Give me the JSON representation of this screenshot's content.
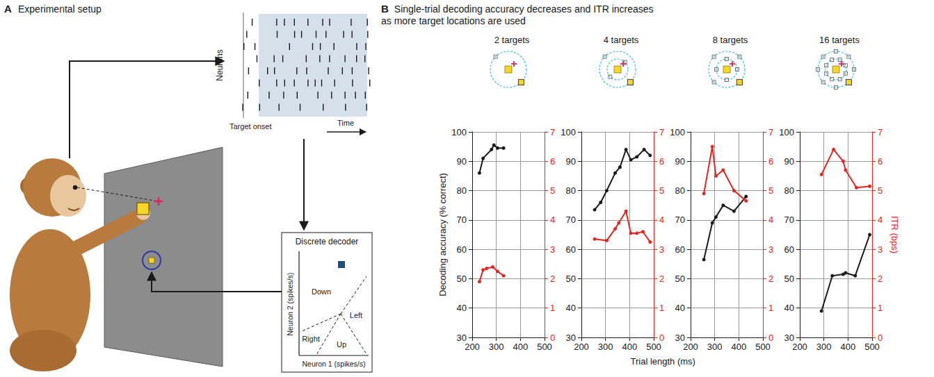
{
  "panel_a": {
    "letter": "A",
    "title": "Experimental setup",
    "raster": {
      "axis_label": "Neurons",
      "event_label": "Target onset",
      "time_label": "Time"
    },
    "decoder": {
      "title": "Discrete decoder",
      "x_label": "Neuron 1 (spikes/s)",
      "y_label": "Neuron 2 (spikes/s)",
      "regions": [
        "Down",
        "Right",
        "Left",
        "Up"
      ]
    }
  },
  "panel_b": {
    "letter": "B",
    "title": "Single-trial decoding accuracy decreases and ITR increases as more target locations are used",
    "x_label": "Trial length (ms)",
    "y_label": "Decoding accuracy (% correct)",
    "y2_label": "ITR (bps)"
  },
  "chart_data": [
    {
      "type": "line",
      "title": "2 targets",
      "grid": true,
      "marker": "circle",
      "xlim": [
        200,
        500
      ],
      "xticks": [
        200,
        300,
        400,
        500
      ],
      "ylim": [
        30,
        100
      ],
      "yticks": [
        30,
        40,
        50,
        60,
        70,
        80,
        90,
        100
      ],
      "y2lim": [
        0,
        7
      ],
      "y2ticks": [
        0,
        1,
        2,
        3,
        4,
        5,
        6,
        7
      ],
      "series": [
        {
          "color": "#1a1a1a",
          "x": [
            230,
            245,
            280,
            290,
            305,
            330
          ],
          "values": [
            86,
            91,
            94,
            95.5,
            94.5,
            94.5
          ]
        },
        {
          "color": "#e8251f",
          "axis": "y2",
          "x": [
            230,
            245,
            260,
            285,
            305,
            330
          ],
          "values": [
            1.9,
            2.3,
            2.35,
            2.4,
            2.25,
            2.1
          ]
        }
      ]
    },
    {
      "type": "line",
      "title": "4 targets",
      "grid": true,
      "marker": "circle",
      "xlim": [
        200,
        500
      ],
      "xticks": [
        200,
        300,
        400,
        500
      ],
      "ylim": [
        30,
        100
      ],
      "yticks": [
        30,
        40,
        50,
        60,
        70,
        80,
        90,
        100
      ],
      "y2lim": [
        0,
        7
      ],
      "y2ticks": [
        0,
        1,
        2,
        3,
        4,
        5,
        6,
        7
      ],
      "series": [
        {
          "color": "#1a1a1a",
          "x": [
            255,
            280,
            305,
            340,
            360,
            385,
            405,
            430,
            460,
            485
          ],
          "values": [
            73.5,
            76,
            80,
            86,
            88,
            94,
            90.5,
            91.5,
            94,
            92
          ]
        },
        {
          "color": "#e8251f",
          "axis": "y2",
          "x": [
            255,
            305,
            340,
            355,
            385,
            405,
            430,
            455,
            485
          ],
          "values": [
            3.35,
            3.3,
            3.7,
            3.9,
            4.3,
            3.55,
            3.55,
            3.6,
            3.25
          ]
        }
      ]
    },
    {
      "type": "line",
      "title": "8 targets",
      "grid": true,
      "marker": "circle",
      "xlim": [
        200,
        500
      ],
      "xticks": [
        200,
        300,
        400,
        500
      ],
      "ylim": [
        30,
        100
      ],
      "yticks": [
        30,
        40,
        50,
        60,
        70,
        80,
        90,
        100
      ],
      "y2lim": [
        0,
        7
      ],
      "y2ticks": [
        0,
        1,
        2,
        3,
        4,
        5,
        6,
        7
      ],
      "series": [
        {
          "color": "#1a1a1a",
          "x": [
            255,
            290,
            305,
            335,
            380,
            430
          ],
          "values": [
            56.5,
            69,
            71,
            75,
            73,
            78
          ]
        },
        {
          "color": "#e8251f",
          "axis": "y2",
          "x": [
            255,
            290,
            305,
            335,
            380,
            430
          ],
          "values": [
            4.9,
            6.5,
            5.5,
            5.7,
            5.0,
            4.65
          ]
        }
      ]
    },
    {
      "type": "line",
      "title": "16 targets",
      "grid": true,
      "marker": "circle",
      "xlim": [
        200,
        500
      ],
      "xticks": [
        200,
        300,
        400,
        500
      ],
      "ylim": [
        30,
        100
      ],
      "yticks": [
        30,
        40,
        50,
        60,
        70,
        80,
        90,
        100
      ],
      "y2lim": [
        0,
        7
      ],
      "y2ticks": [
        0,
        1,
        2,
        3,
        4,
        5,
        6,
        7
      ],
      "series": [
        {
          "color": "#1a1a1a",
          "x": [
            290,
            335,
            380,
            390,
            430,
            490
          ],
          "values": [
            39,
            51,
            51.5,
            52,
            51,
            65
          ]
        },
        {
          "color": "#e8251f",
          "axis": "y2",
          "x": [
            290,
            340,
            380,
            390,
            435,
            490
          ],
          "values": [
            5.55,
            6.4,
            6.0,
            5.7,
            5.1,
            5.15
          ]
        }
      ]
    }
  ]
}
